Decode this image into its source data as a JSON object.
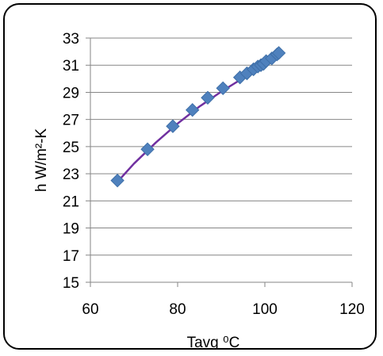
{
  "chart_data": {
    "type": "scatter",
    "title": "",
    "xlabel": "Tavg ⁰C",
    "ylabel": "h W/m²-K",
    "xlim": [
      60,
      120
    ],
    "ylim": [
      15,
      33
    ],
    "xticks": [
      60,
      80,
      100,
      120
    ],
    "yticks": [
      15,
      17,
      19,
      21,
      23,
      25,
      27,
      29,
      31,
      33
    ],
    "grid": "horizontal",
    "legend": "none",
    "series": [
      {
        "marker": "diamond",
        "color": "#4F81BD",
        "x": [
          66.2,
          73.1,
          78.9,
          83.4,
          86.9,
          90.4,
          94.3,
          95.9,
          97.4,
          98.4,
          99.1,
          99.7,
          100.3,
          101.6,
          102.8,
          103.2
        ],
        "y": [
          22.5,
          24.8,
          26.5,
          27.7,
          28.6,
          29.3,
          30.1,
          30.4,
          30.7,
          30.9,
          31.0,
          31.1,
          31.3,
          31.5,
          31.8,
          31.9
        ]
      }
    ],
    "trendline": {
      "color": "#7030A0",
      "x": [
        66.2,
        70,
        75,
        80,
        85,
        90,
        95,
        100,
        103.2
      ],
      "y": [
        22.4,
        23.75,
        25.3,
        26.7,
        27.95,
        29.05,
        30.05,
        31.0,
        31.6
      ]
    }
  }
}
